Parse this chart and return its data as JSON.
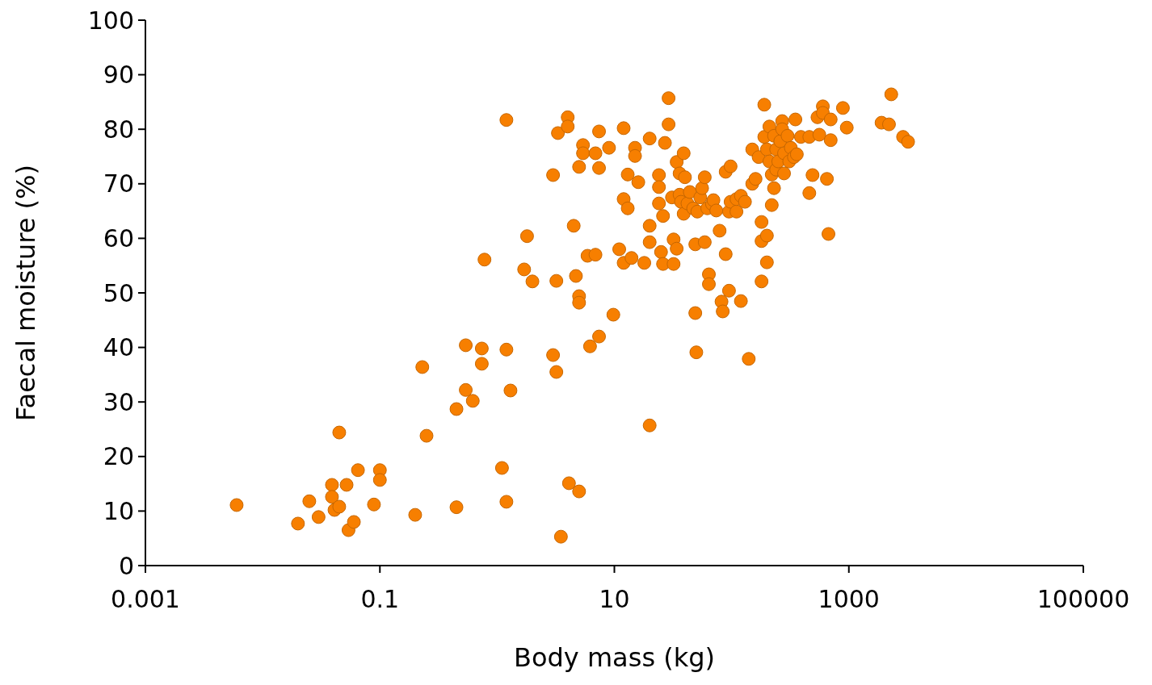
{
  "chart_data": {
    "type": "scatter",
    "xlabel": "Body mass (kg)",
    "ylabel": "Faecal moisture (%)",
    "log": "x",
    "xlim": [
      0.001,
      100000
    ],
    "xticks": [
      0.001,
      0.1,
      10,
      1000,
      100000
    ],
    "ylim": [
      0,
      100
    ],
    "yticks": [
      0,
      10,
      20,
      30,
      40,
      50,
      60,
      70,
      80,
      90,
      100
    ],
    "grid": false,
    "marker": "circle",
    "series": [
      {
        "color": "#f77f00",
        "x": [
          0.006,
          0.02,
          0.025,
          0.03,
          0.039,
          0.039,
          0.041,
          0.045,
          0.045,
          0.052,
          0.054,
          0.06,
          0.065,
          0.1,
          0.1,
          0.089,
          0.2,
          0.23,
          0.25,
          0.45,
          0.45,
          0.54,
          0.54,
          0.62,
          0.74,
          0.74,
          0.78,
          1.1,
          1.2,
          1.2,
          1.2,
          1.3,
          1.7,
          1.8,
          2.0,
          3.0,
          3.0,
          3.2,
          3.2,
          3.3,
          3.5,
          4.0,
          4.0,
          4.1,
          4.5,
          4.7,
          5.0,
          5.0,
          5.0,
          5.0,
          5.4,
          5.4,
          5.9,
          6.2,
          6.9,
          6.9,
          7.4,
          7.4,
          7.4,
          9.0,
          9.8,
          11,
          12,
          12,
          12,
          13,
          13,
          14,
          15,
          15,
          16,
          18,
          20,
          20,
          20,
          20,
          24,
          24,
          24,
          25,
          26,
          26,
          27,
          29,
          29,
          31,
          32,
          32,
          34,
          34,
          36,
          36,
          37,
          39,
          39,
          40,
          42,
          44,
          47,
          49,
          49,
          50,
          51,
          54,
          56,
          59,
          59,
          62,
          64,
          64,
          68,
          70,
          74,
          79,
          82,
          84,
          89,
          89,
          95,
          95,
          98,
          98,
          110,
          110,
          120,
          120,
          130,
          140,
          150,
          150,
          160,
          170,
          180,
          180,
          180,
          190,
          190,
          200,
          200,
          200,
          210,
          210,
          220,
          220,
          230,
          230,
          240,
          240,
          250,
          260,
          270,
          270,
          280,
          280,
          300,
          310,
          320,
          340,
          350,
          360,
          390,
          460,
          460,
          490,
          540,
          560,
          600,
          600,
          650,
          670,
          700,
          700,
          890,
          960,
          1900,
          2200,
          2300,
          2900,
          3200
        ],
        "values": [
          11.1,
          7.7,
          11.8,
          8.9,
          14.8,
          12.6,
          10.2,
          10.8,
          24.4,
          14.8,
          6.5,
          8.0,
          17.5,
          17.5,
          15.7,
          11.2,
          9.3,
          36.4,
          23.8,
          28.7,
          10.7,
          40.4,
          32.2,
          30.2,
          39.8,
          37.0,
          56.1,
          17.9,
          81.7,
          39.6,
          11.7,
          32.1,
          54.3,
          60.4,
          52.1,
          38.6,
          71.6,
          52.2,
          35.5,
          79.3,
          5.3,
          82.2,
          80.5,
          15.1,
          62.3,
          53.1,
          13.6,
          73.1,
          49.4,
          48.2,
          77.1,
          75.6,
          56.8,
          40.2,
          75.6,
          57.0,
          42.0,
          79.6,
          72.9,
          76.6,
          46.0,
          58.0,
          67.2,
          80.2,
          55.5,
          65.5,
          71.7,
          56.4,
          76.6,
          75.1,
          70.3,
          55.5,
          25.7,
          78.3,
          62.3,
          59.3,
          71.6,
          69.4,
          66.4,
          57.5,
          64.1,
          55.3,
          77.5,
          85.7,
          80.9,
          67.5,
          59.8,
          55.3,
          58.1,
          74.0,
          71.9,
          68.0,
          66.7,
          75.6,
          64.5,
          71.2,
          66.4,
          68.5,
          65.5,
          46.3,
          58.9,
          39.1,
          64.9,
          67.5,
          69.2,
          59.3,
          71.2,
          65.5,
          53.4,
          51.6,
          66.3,
          67.0,
          65.1,
          61.4,
          48.4,
          46.6,
          57.1,
          72.2,
          50.4,
          64.9,
          73.2,
          66.7,
          64.9,
          67.2,
          48.5,
          67.8,
          66.7,
          37.9,
          76.3,
          70.0,
          70.9,
          74.9,
          52.1,
          63.0,
          59.5,
          84.5,
          78.6,
          60.5,
          55.6,
          76.3,
          74.1,
          80.5,
          66.1,
          71.7,
          69.2,
          78.8,
          76.3,
          72.6,
          74.1,
          77.8,
          81.5,
          80.0,
          71.9,
          75.6,
          78.8,
          74.1,
          76.6,
          74.9,
          81.8,
          75.4,
          78.6,
          68.3,
          78.6,
          71.6,
          82.2,
          79.0,
          84.2,
          83.0,
          70.9,
          60.8,
          78.0,
          81.8,
          83.9,
          80.3,
          81.2,
          80.9,
          86.4,
          78.6,
          77.7
        ]
      }
    ]
  }
}
